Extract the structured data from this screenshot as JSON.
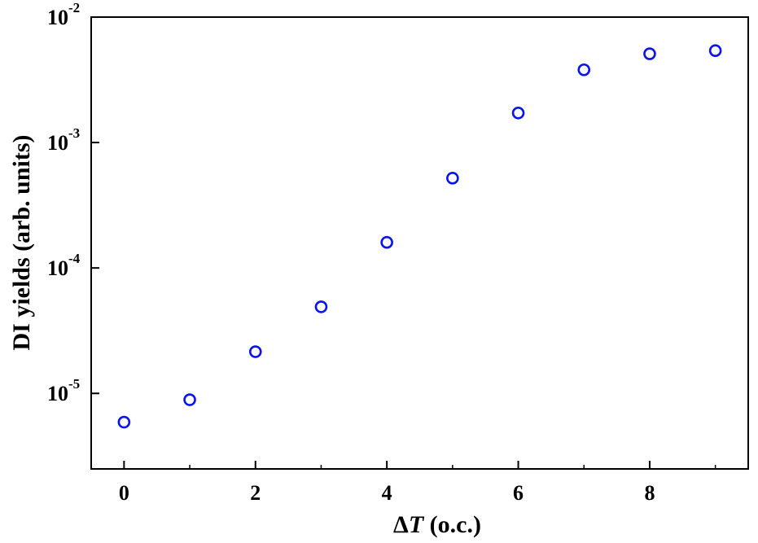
{
  "chart_data": {
    "type": "scatter",
    "title": "",
    "xlabel": {
      "prefix": "Δ",
      "variable": "T",
      "suffix": " (o.c.)"
    },
    "ylabel": "DI yields (arb. units)",
    "xlim": [
      -0.5,
      9.5
    ],
    "ylim": [
      2.5e-06,
      0.01
    ],
    "y_scale": "log",
    "x_ticks": [
      0,
      2,
      4,
      6,
      8
    ],
    "y_ticks": [
      {
        "value": 1e-05,
        "base": "10",
        "exp": "-5"
      },
      {
        "value": 0.0001,
        "base": "10",
        "exp": "-4"
      },
      {
        "value": 0.001,
        "base": "10",
        "exp": "-3"
      },
      {
        "value": 0.01,
        "base": "10",
        "exp": "-2"
      }
    ],
    "grid": false,
    "marker": "open-circle",
    "marker_color": "#0a14f0",
    "series": [
      {
        "x": [
          0,
          1,
          2,
          3,
          4,
          5,
          6,
          7,
          8,
          9
        ],
        "y": [
          5.9e-06,
          8.9e-06,
          2.15e-05,
          4.9e-05,
          0.00016,
          0.00052,
          0.00172,
          0.0038,
          0.0051,
          0.0054
        ]
      }
    ]
  }
}
